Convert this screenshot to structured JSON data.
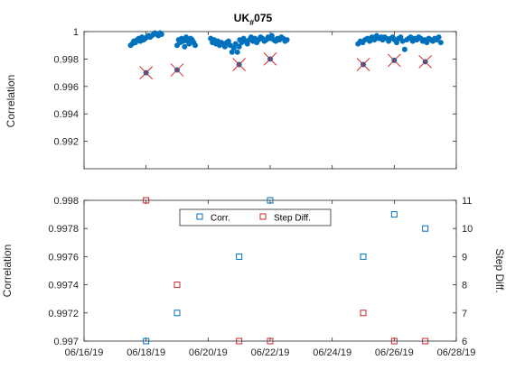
{
  "chart_data": [
    {
      "type": "scatter",
      "title_main": "UK",
      "title_sub": "#",
      "title_tail": "075",
      "ylabel": "Correlation",
      "xlim": [
        "06/16/19",
        "06/28/19"
      ],
      "ylim": [
        0.99,
        1.0
      ],
      "yticks": [
        0.992,
        0.994,
        0.996,
        0.998,
        1.0
      ],
      "ytick_labels": [
        "0.992",
        "0.994",
        "0.996",
        "0.998",
        "1"
      ],
      "x_ticks": [
        "06/16/19",
        "06/18/19",
        "06/20/19",
        "06/22/19",
        "06/24/19",
        "06/26/19",
        "06/28/19"
      ],
      "marker_color": "#0072bd",
      "cross_color": "#d62728",
      "series": [
        {
          "marker": "dot",
          "segments": [
            {
              "start": "06/17/19 12:00",
              "end": "06/18/19 12:00",
              "points": [
                0.999,
                0.9991,
                0.9993,
                0.9992,
                0.9994,
                0.9995,
                0.9993,
                0.9996,
                0.9994,
                0.9995,
                0.9996,
                0.9997,
                0.9996,
                0.9997,
                0.9998,
                0.9999,
                0.9998,
                0.9997,
                0.9999,
                0.9998
              ]
            },
            {
              "start": "06/19/19 00:00",
              "end": "06/19/19 14:00",
              "points": [
                0.999,
                0.9994,
                0.9992,
                0.9995,
                0.9993,
                0.9989,
                0.9996,
                0.9993,
                0.9991,
                0.9995,
                0.9994,
                0.9992,
                0.999
              ]
            },
            {
              "start": "06/20/19 02:00",
              "end": "06/21/19 00:00",
              "points": [
                0.9995,
                0.9992,
                0.9994,
                0.9991,
                0.9993,
                0.999,
                0.9992,
                0.9991,
                0.9989,
                0.9992,
                0.9993,
                0.999,
                0.9985,
                0.9988,
                0.9991,
                0.9985,
                0.9989
              ]
            },
            {
              "start": "06/21/19 00:30",
              "end": "06/22/19 13:00",
              "points": [
                0.9994,
                0.9992,
                0.9995,
                0.9993,
                0.9991,
                0.9994,
                0.9996,
                0.9993,
                0.9995,
                0.9992,
                0.9994,
                0.9996,
                0.9995,
                0.9993,
                0.9994,
                0.9996,
                0.9995,
                0.9997,
                0.9994,
                0.9993,
                0.9995,
                0.9994,
                0.9996,
                0.9995,
                0.9993,
                0.9994
              ]
            },
            {
              "start": "06/24/19 20:00",
              "end": "06/25/19 14:00",
              "points": [
                0.9991,
                0.9993,
                0.9992,
                0.9994,
                0.9995,
                0.9993,
                0.9996,
                0.9994,
                0.9997,
                0.9995,
                0.9996
              ]
            },
            {
              "start": "06/25/19 15:00",
              "end": "06/27/19 12:00",
              "points": [
                0.9994,
                0.9996,
                0.9995,
                0.9993,
                0.9995,
                0.9996,
                0.9994,
                0.9992,
                0.9995,
                0.9996,
                0.9993,
                0.9987,
                0.9994,
                0.9995,
                0.9996,
                0.9993,
                0.9995,
                0.9994,
                0.9996,
                0.9995,
                0.9993,
                0.9994,
                0.9992,
                0.9995,
                0.9994,
                0.9993,
                0.9995,
                0.9994,
                0.9996,
                0.9992
              ]
            }
          ]
        },
        {
          "marker": "x-with-dot",
          "points": [
            {
              "x": "06/18/19",
              "y": 0.997
            },
            {
              "x": "06/19/19",
              "y": 0.9972
            },
            {
              "x": "06/21/19",
              "y": 0.9976
            },
            {
              "x": "06/22/19",
              "y": 0.998
            },
            {
              "x": "06/25/19",
              "y": 0.9976
            },
            {
              "x": "06/26/19",
              "y": 0.9979
            },
            {
              "x": "06/27/19",
              "y": 0.9978
            }
          ]
        }
      ]
    },
    {
      "type": "scatter",
      "ylabel_left": "Correlation",
      "ylabel_right": "Step Diff.",
      "xlim": [
        "06/16/19",
        "06/28/19"
      ],
      "ylim_left": [
        0.997,
        0.998
      ],
      "ylim_right": [
        6,
        11
      ],
      "yticks_left": [
        0.997,
        0.9972,
        0.9974,
        0.9976,
        0.9978,
        0.998
      ],
      "ytick_labels_left": [
        "0.997",
        "0.9972",
        "0.9974",
        "0.9976",
        "0.9978",
        "0.998"
      ],
      "yticks_right": [
        6,
        7,
        8,
        9,
        10,
        11
      ],
      "ytick_labels_right": [
        "6",
        "7",
        "8",
        "9",
        "10",
        "11"
      ],
      "x_ticks": [
        "06/16/19",
        "06/18/19",
        "06/20/19",
        "06/22/19",
        "06/24/19",
        "06/26/19",
        "06/28/19"
      ],
      "legend_placement": "top-center",
      "series": [
        {
          "name": "Corr.",
          "axis": "left",
          "color": "#0072bd",
          "points": [
            {
              "x": "06/18/19",
              "y": 0.997
            },
            {
              "x": "06/19/19",
              "y": 0.9972
            },
            {
              "x": "06/21/19",
              "y": 0.9976
            },
            {
              "x": "06/22/19",
              "y": 0.998
            },
            {
              "x": "06/25/19",
              "y": 0.9976
            },
            {
              "x": "06/26/19",
              "y": 0.9979
            },
            {
              "x": "06/27/19",
              "y": 0.9978
            }
          ]
        },
        {
          "name": "Step Diff.",
          "axis": "right",
          "color": "#c0282d",
          "points": [
            {
              "x": "06/18/19",
              "y": 11
            },
            {
              "x": "06/19/19",
              "y": 8
            },
            {
              "x": "06/21/19",
              "y": 6
            },
            {
              "x": "06/22/19",
              "y": 6
            },
            {
              "x": "06/25/19",
              "y": 7
            },
            {
              "x": "06/26/19",
              "y": 6
            },
            {
              "x": "06/27/19",
              "y": 6
            }
          ]
        }
      ]
    }
  ]
}
